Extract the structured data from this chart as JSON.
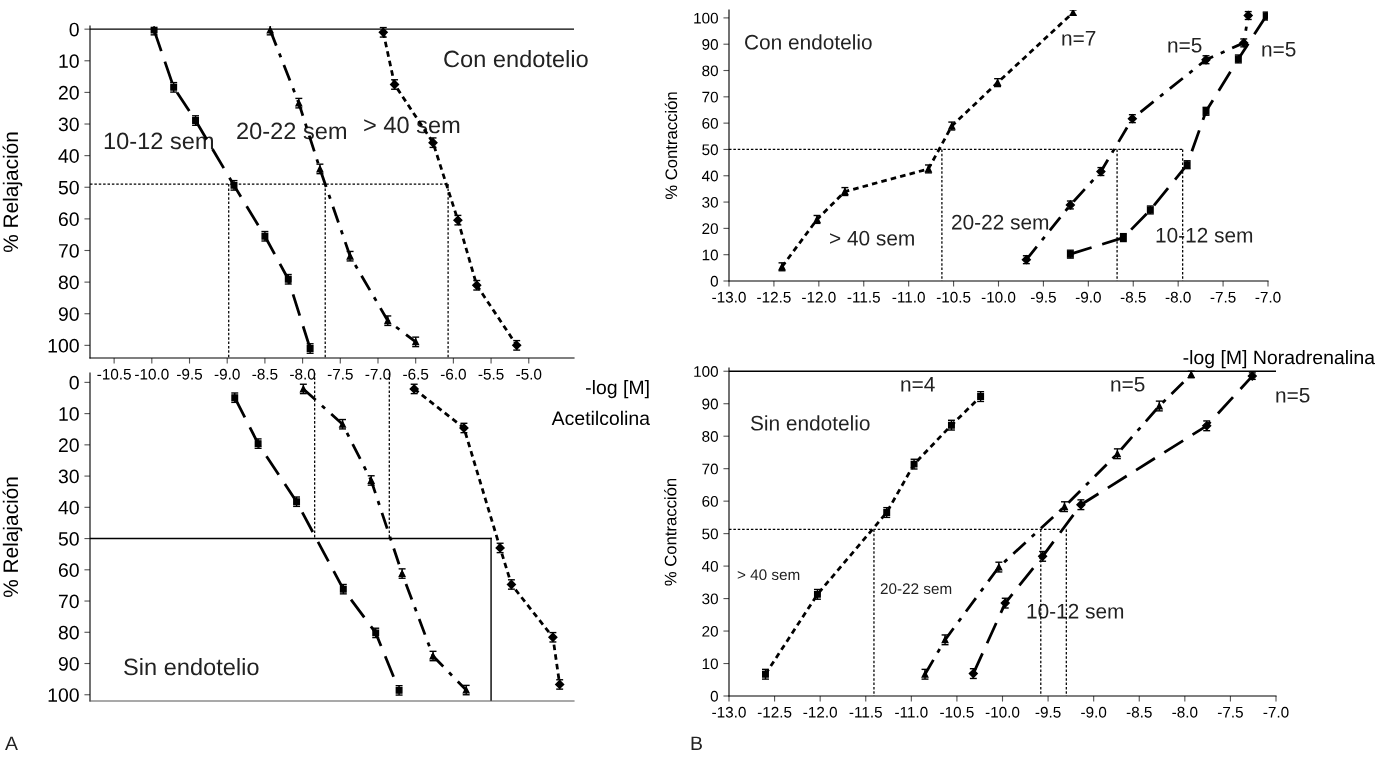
{
  "chart_data": [
    {
      "type": "line",
      "xlabel": "-log [M]\nAcetilcolina",
      "ylabel": "% Relajación",
      "annotations": [
        "Con endotelio",
        "10-12 sem",
        "20-22 sem",
        "> 40 sem"
      ],
      "xlim": [
        -10.82,
        -4.4
      ],
      "xticks": [
        -10.5,
        {
          "value": -10,
          "label": "-10.0"
        },
        -9.5,
        {
          "value": -9,
          "label": "-9.0"
        },
        -8.5,
        {
          "value": -8,
          "label": "-8.0"
        },
        -7.5,
        {
          "value": -7,
          "label": "-7.0"
        },
        -6.5,
        {
          "value": -6,
          "label": "-6.0"
        },
        -5.5,
        {
          "value": -5,
          "label": "-5.0"
        }
      ],
      "ylim": [
        104,
        -1
      ],
      "yticks": [
        0,
        10,
        20,
        30,
        40,
        50,
        60,
        70,
        80,
        90,
        100
      ],
      "series": [
        {
          "color": "#000000",
          "marker": "square",
          "line_style": "dashed",
          "x": [
            -9.97,
            -9.71,
            -9.42,
            -8.91,
            -8.5,
            -8.19,
            -7.9
          ],
          "values": [
            0.3,
            18.4,
            28.9,
            49.4,
            65.5,
            79.1,
            101
          ],
          "errors": [
            1.5,
            1.5,
            1.5,
            1.5,
            1.5,
            1.5,
            1.5
          ]
        },
        {
          "color": "#000000",
          "marker": "triangle",
          "line_style": "dashdot",
          "x": [
            -8.43,
            -8.05,
            -7.77,
            -7.37,
            -6.87,
            -6.5
          ],
          "values": [
            0.3,
            23.4,
            44.2,
            71.8,
            92.2,
            98.9
          ],
          "errors": [
            1.5,
            1.5,
            1.5,
            1.5,
            1.5,
            1.5
          ]
        },
        {
          "color": "#000000",
          "marker": "diamond",
          "line_style": "dotted",
          "x": [
            -6.93,
            -6.78,
            -6.27,
            -5.94,
            -5.69,
            -5.16
          ],
          "values": [
            1,
            17.5,
            35.9,
            60.4,
            81.0,
            100
          ],
          "errors": [
            1.5,
            1.5,
            1.5,
            1.5,
            1.5,
            1.5
          ]
        }
      ],
      "ref_lines": [
        {
          "axis": "y",
          "value": 0,
          "line_style": "solid",
          "color": "#000000"
        },
        {
          "axis": "y",
          "value": 49,
          "line_style": "dotted",
          "color": "#000000"
        },
        {
          "axis": "x",
          "value": -8.98,
          "line_style": "dotted",
          "color": "#000000"
        },
        {
          "axis": "x",
          "value": -7.7,
          "line_style": "dotted",
          "color": "#000000"
        },
        {
          "axis": "x",
          "value": -6.07,
          "line_style": "dotted",
          "color": "#000000"
        }
      ]
    },
    {
      "type": "line",
      "ylabel": "% Relajación",
      "tick_labels": "y",
      "annotations": [
        "Sin endotelio",
        "A"
      ],
      "xlim": [
        -10.82,
        -4.4
      ],
      "ylim": [
        102,
        -3
      ],
      "yticks": [
        0,
        10,
        20,
        30,
        40,
        50,
        60,
        70,
        80,
        90,
        100
      ],
      "series": [
        {
          "color": "#000000",
          "marker": "square",
          "line_style": "dashed",
          "x": [
            -8.9,
            -8.59,
            -8.08,
            -7.46,
            -7.03,
            -6.72
          ],
          "values": [
            4.9,
            19.6,
            38.2,
            66.2,
            80.2,
            98.6
          ],
          "errors": [
            1.5,
            1.5,
            1.5,
            1.5,
            1.5,
            1.5
          ]
        },
        {
          "color": "#000000",
          "marker": "triangle",
          "line_style": "dashdot",
          "x": [
            -7.99,
            -7.47,
            -7.09,
            -6.68,
            -6.27,
            -5.83
          ],
          "values": [
            2.1,
            13.4,
            31.4,
            61.2,
            87.6,
            98.5
          ],
          "errors": [
            1.5,
            1.5,
            1.5,
            1.5,
            1.5,
            1.5
          ]
        },
        {
          "color": "#000000",
          "marker": "diamond",
          "line_style": "dotted",
          "x": [
            -6.52,
            -5.86,
            -5.38,
            -5.23,
            -4.68,
            -4.59
          ],
          "values": [
            2.1,
            14.6,
            53.0,
            64.7,
            81.6,
            96.7
          ],
          "errors": [
            1.5,
            1.5,
            1.5,
            1.5,
            1.5,
            1.5
          ]
        }
      ],
      "ref_lines": [
        {
          "axis": "y",
          "value": 50,
          "line_style": "solid",
          "color": "#000000"
        },
        {
          "axis": "x",
          "value": -7.84,
          "line_style": "dotted",
          "color": "#000000"
        },
        {
          "axis": "x",
          "value": -6.85,
          "line_style": "dotted",
          "color": "#000000"
        },
        {
          "axis": "x",
          "value": -5.5,
          "line_style": "solid",
          "color": "#000000"
        }
      ]
    },
    {
      "type": "line",
      "xlabel": "-log [M] Noradrenalina",
      "ylabel": "% Contracción",
      "annotations": [
        "Con endotelio",
        "n=7",
        "n=5",
        "n=5",
        "> 40 sem",
        "20-22 sem",
        "10-12 sem"
      ],
      "xlim": [
        -13,
        -7
      ],
      "xticks": [
        {
          "value": -13,
          "label": "-13.0"
        },
        -12.5,
        {
          "value": -12,
          "label": "-12.0"
        },
        -11.5,
        {
          "value": -11,
          "label": "-11.0"
        },
        -10.5,
        {
          "value": -10,
          "label": "-10.0"
        },
        -9.5,
        {
          "value": -9,
          "label": "-9.0"
        },
        -8.5,
        {
          "value": -8,
          "label": "-8.0"
        },
        -7.5,
        {
          "value": -7,
          "label": "-7.0"
        }
      ],
      "ylim": [
        0,
        103
      ],
      "yticks": [
        0,
        10,
        20,
        30,
        40,
        50,
        60,
        70,
        80,
        90,
        100
      ],
      "series": [
        {
          "color": "#000000",
          "marker": "triangle",
          "line_style": "dotted",
          "x": [
            -12.41,
            -12.02,
            -11.71,
            -10.78,
            -10.52,
            -10.01,
            -9.17
          ],
          "values": [
            5.4,
            23.4,
            34.0,
            42.6,
            58.9,
            75.4,
            102
          ],
          "errors": [
            1.5,
            1.5,
            1.5,
            1.5,
            1.5,
            1.5,
            1
          ]
        },
        {
          "color": "#000000",
          "marker": "diamond",
          "line_style": "dashdot",
          "x": [
            -9.69,
            -9.2,
            -8.86,
            -8.51,
            -7.69,
            -7.27,
            -7.22
          ],
          "values": [
            8.1,
            28.9,
            41.6,
            61.7,
            84.1,
            90.5,
            100.9
          ],
          "errors": [
            1.5,
            1.5,
            1.5,
            1.5,
            1.5,
            1.5,
            1.5
          ]
        },
        {
          "color": "#000000",
          "marker": "square",
          "line_style": "dashed",
          "x": [
            -9.2,
            -8.61,
            -8.31,
            -7.9,
            -7.69,
            -7.33,
            -7.02
          ],
          "values": [
            10.2,
            16.5,
            27.0,
            44.2,
            64.5,
            84.4,
            100.7
          ],
          "errors": [
            1.5,
            1.5,
            1.5,
            1.5,
            1.5,
            1.5,
            1.5
          ]
        }
      ],
      "ref_lines": [
        {
          "axis": "y",
          "value": 50,
          "line_style": "dotted",
          "color": "#000000"
        },
        {
          "axis": "x",
          "value": -10.63,
          "line_style": "dotted",
          "color": "#000000"
        },
        {
          "axis": "x",
          "value": -8.68,
          "line_style": "dotted",
          "color": "#000000"
        },
        {
          "axis": "x",
          "value": -7.95,
          "line_style": "dotted",
          "color": "#000000"
        }
      ]
    },
    {
      "type": "line",
      "annotations": [
        "Sin endotelio",
        "n=4",
        "n=5",
        "n=5",
        "> 40 sem",
        "20-22 sem",
        "10-12 sem",
        "B"
      ],
      "ylabel": "% Contracción",
      "xlim": [
        -13,
        -7
      ],
      "xticks": [
        {
          "value": -13,
          "label": "-13.0"
        },
        -12.5,
        {
          "value": -12,
          "label": "-12.0"
        },
        -11.5,
        {
          "value": -11,
          "label": "-11.0"
        },
        -10.5,
        {
          "value": -10,
          "label": "-10.0"
        },
        -9.5,
        {
          "value": -9,
          "label": "-9.0"
        },
        -8.5,
        {
          "value": -8,
          "label": "-8.0"
        },
        -7.5,
        {
          "value": -7,
          "label": "-7.0"
        }
      ],
      "ylim": [
        0,
        101
      ],
      "yticks": [
        0,
        10,
        20,
        30,
        40,
        50,
        60,
        70,
        80,
        90,
        100
      ],
      "series": [
        {
          "color": "#000000",
          "marker": "square",
          "line_style": "dotted",
          "x": [
            -12.6,
            -12.03,
            -11.27,
            -10.97,
            -10.56,
            -10.24
          ],
          "values": [
            6.7,
            31.3,
            56.5,
            71.4,
            83.4,
            92.2
          ],
          "errors": [
            1.5,
            1.5,
            1.5,
            1.5,
            1.5,
            1.5
          ]
        },
        {
          "color": "#000000",
          "marker": "triangle",
          "line_style": "dashdot",
          "x": [
            -10.85,
            -10.63,
            -10.04,
            -9.32,
            -8.74,
            -8.28,
            -7.93
          ],
          "values": [
            6.7,
            17.3,
            39.7,
            58.3,
            74.6,
            89.3,
            99
          ],
          "errors": [
            1.5,
            1.5,
            1.5,
            1.5,
            1.5,
            1.5,
            1
          ]
        },
        {
          "color": "#000000",
          "marker": "diamond",
          "line_style": "dashed",
          "x": [
            -10.32,
            -9.97,
            -9.56,
            -9.14,
            -7.76,
            -7.26
          ],
          "values": [
            6.9,
            28.6,
            43.0,
            58.9,
            83.2,
            98.5
          ],
          "errors": [
            1.5,
            1.5,
            1.5,
            1.5,
            1.5,
            1
          ]
        }
      ],
      "ref_lines": [
        {
          "axis": "y",
          "value": 100,
          "line_style": "solid",
          "color": "#000000"
        },
        {
          "axis": "y",
          "value": 51.3,
          "line_style": "dotted",
          "color": "#000000"
        },
        {
          "axis": "x",
          "value": -11.41,
          "line_style": "dotted",
          "color": "#000000"
        },
        {
          "axis": "x",
          "value": -9.58,
          "line_style": "dotted",
          "color": "#000000"
        },
        {
          "axis": "x",
          "value": -9.3,
          "line_style": "dotted",
          "color": "#000000"
        }
      ]
    }
  ]
}
